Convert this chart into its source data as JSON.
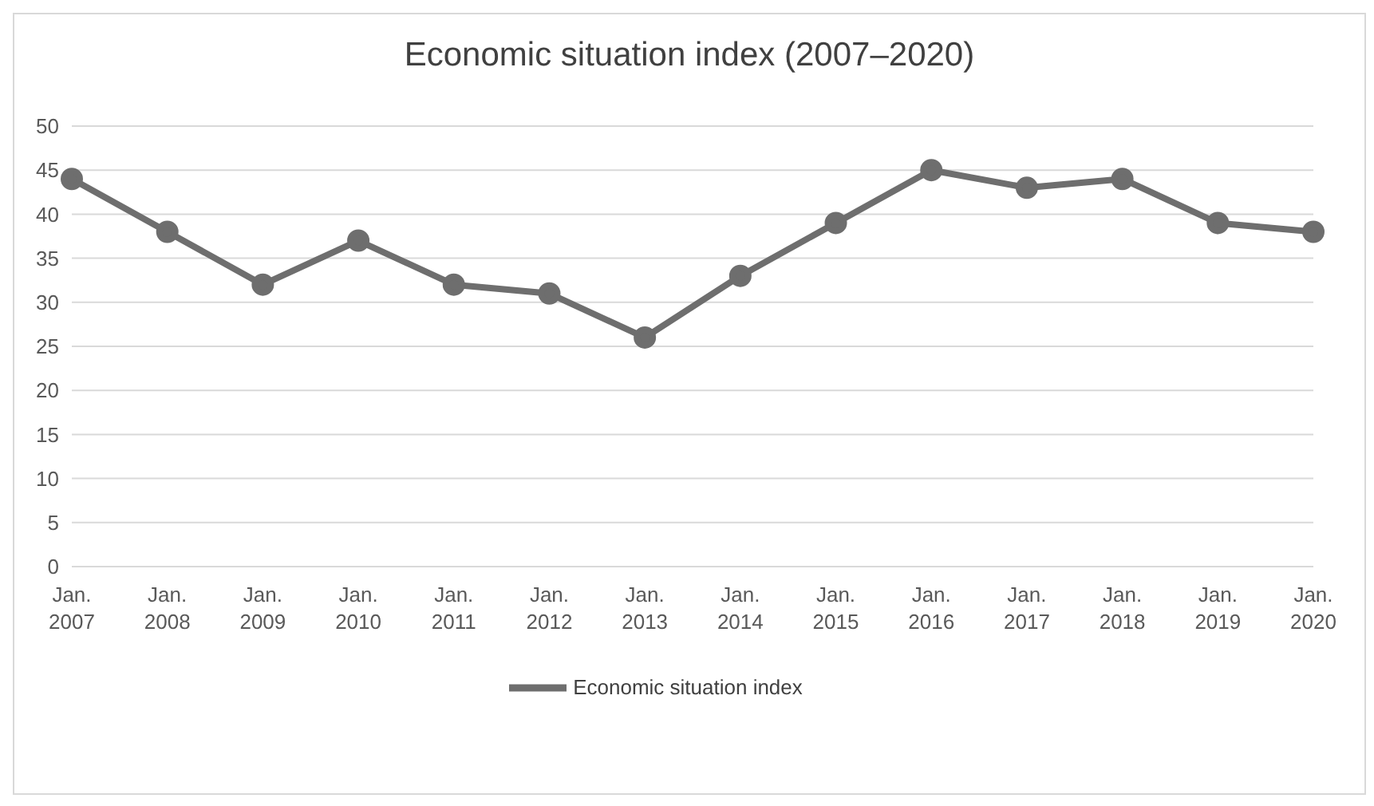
{
  "chart_data": {
    "type": "line",
    "title": "Economic situation index (2007–2020)",
    "categories": [
      "Jan. 2007",
      "Jan. 2008",
      "Jan. 2009",
      "Jan. 2010",
      "Jan. 2011",
      "Jan. 2012",
      "Jan. 2013",
      "Jan. 2014",
      "Jan. 2015",
      "Jan. 2016",
      "Jan. 2017",
      "Jan. 2018",
      "Jan. 2019",
      "Jan. 2020"
    ],
    "series": [
      {
        "name": "Economic situation index",
        "color": "#6e6e6e",
        "values": [
          44,
          38,
          32,
          37,
          32,
          31,
          26,
          33,
          39,
          45,
          43,
          44,
          39,
          38
        ]
      }
    ],
    "ylim": [
      0,
      50
    ],
    "yticks": [
      0,
      5,
      10,
      15,
      20,
      25,
      30,
      35,
      40,
      45,
      50
    ],
    "grid": "y",
    "legend": "bottom",
    "marker": "circle",
    "line_style": "solid"
  }
}
